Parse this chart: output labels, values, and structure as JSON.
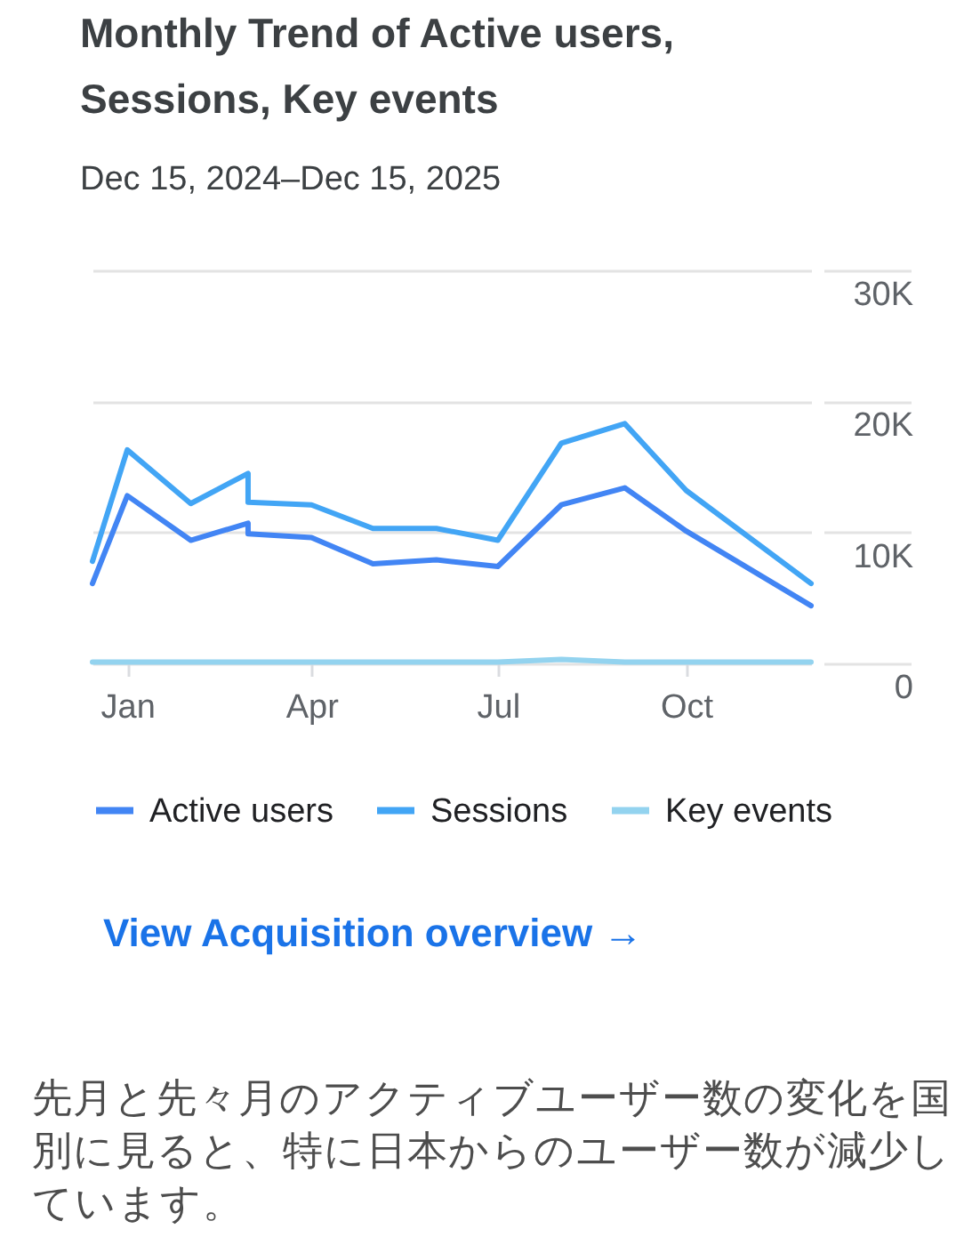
{
  "chart_data": {
    "type": "line",
    "title": "Monthly Trend of Active users, Sessions, Key events",
    "subtitle": "Dec 15, 2024–Dec 15, 2025",
    "x": [
      "2024-12-15",
      "2025-01-01",
      "2025-02-01",
      "2025-03-01",
      "2025-03-01",
      "2025-04-01",
      "2025-05-01",
      "2025-06-01",
      "2025-07-01",
      "2025-08-01",
      "2025-09-01",
      "2025-10-01",
      "2025-12-01"
    ],
    "series": [
      {
        "name": "Active users",
        "color": "#4285f4",
        "values": [
          6100,
          12800,
          9400,
          10700,
          9900,
          9600,
          7600,
          7900,
          7400,
          12100,
          13400,
          10100,
          4400
        ]
      },
      {
        "name": "Sessions",
        "color": "#42a5f5",
        "values": [
          7800,
          16300,
          12200,
          14500,
          12300,
          12100,
          10300,
          10300,
          9400,
          16800,
          18300,
          13200,
          6100
        ]
      },
      {
        "name": "Key events",
        "color": "#93d3ef",
        "values": [
          100,
          100,
          100,
          100,
          100,
          100,
          100,
          100,
          100,
          300,
          100,
          100,
          100
        ]
      }
    ],
    "xlim": [
      "2024-12-15",
      "2025-12-01"
    ],
    "xticks": [
      {
        "value": "2025-01-01",
        "label": "Jan"
      },
      {
        "value": "2025-04-01",
        "label": "Apr"
      },
      {
        "value": "2025-07-01",
        "label": "Jul"
      },
      {
        "value": "2025-10-01",
        "label": "Oct"
      }
    ],
    "ylim": [
      0,
      30000
    ],
    "yticks": [
      0,
      {
        "value": 10000,
        "label": "10K"
      },
      {
        "value": 20000,
        "label": "20K"
      },
      {
        "value": 30000,
        "label": "30K"
      }
    ],
    "grid": "y",
    "legend": "bottom",
    "line_style": "solid",
    "annotations": [
      "View Acquisition overview →",
      "先月と先々月のアクティブユーザー数の変化を国別に見ると、特に日本からのユーザー数が減少しています。"
    ]
  }
}
